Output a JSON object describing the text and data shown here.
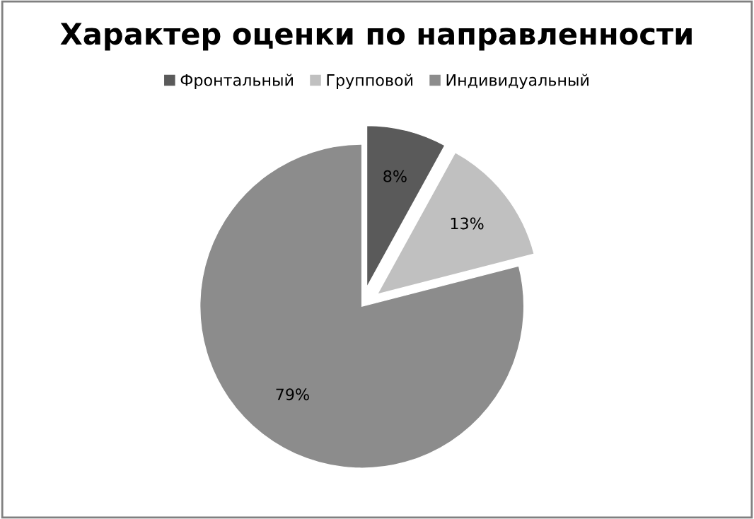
{
  "chart_data": {
    "type": "pie",
    "title": "Характер оценки по направленности",
    "categories": [
      "Фронтальный",
      "Групповой",
      "Индивидуальный"
    ],
    "values": [
      8,
      13,
      79
    ],
    "colors": [
      "#5a5a5a",
      "#c0c0c0",
      "#8c8c8c"
    ],
    "value_labels": [
      "8%",
      "13%",
      "79%"
    ],
    "legend": "top"
  }
}
